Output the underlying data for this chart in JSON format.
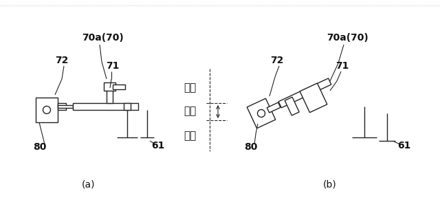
{
  "bg_color": "#ffffff",
  "line_color": "#222222",
  "text_color": "#111111",
  "label_a": "(a)",
  "label_b": "(b)",
  "label_70a_70": "70a(70)",
  "label_72": "72",
  "label_71": "71",
  "label_80": "80",
  "label_61": "61",
  "label_touko1": "透光",
  "label_shakou": "遮光",
  "label_touko2": "透光",
  "fig_width": 6.4,
  "fig_height": 2.94,
  "dpi": 100
}
